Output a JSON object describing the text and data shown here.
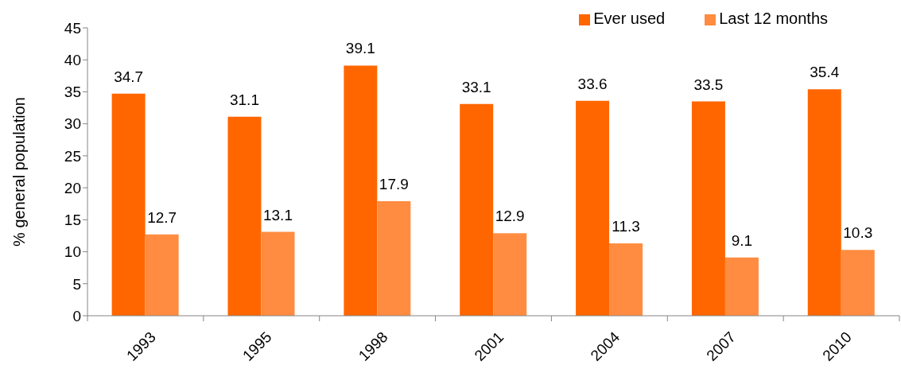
{
  "chart_data": {
    "type": "bar",
    "categories": [
      "1993",
      "1995",
      "1998",
      "2001",
      "2004",
      "2007",
      "2010"
    ],
    "series": [
      {
        "name": "Ever used",
        "color": "#ff6600",
        "values": [
          34.7,
          31.1,
          39.1,
          33.1,
          33.6,
          33.5,
          35.4
        ]
      },
      {
        "name": "Last 12 months",
        "color": "#ff8c40",
        "values": [
          12.7,
          13.1,
          17.9,
          12.9,
          11.3,
          9.1,
          10.3
        ]
      }
    ],
    "ylabel": "% general population",
    "ylim": [
      0,
      45
    ],
    "yticks": [
      0,
      5,
      10,
      15,
      20,
      25,
      30,
      35,
      40,
      45
    ],
    "legend": "top right",
    "data_labels": true
  }
}
